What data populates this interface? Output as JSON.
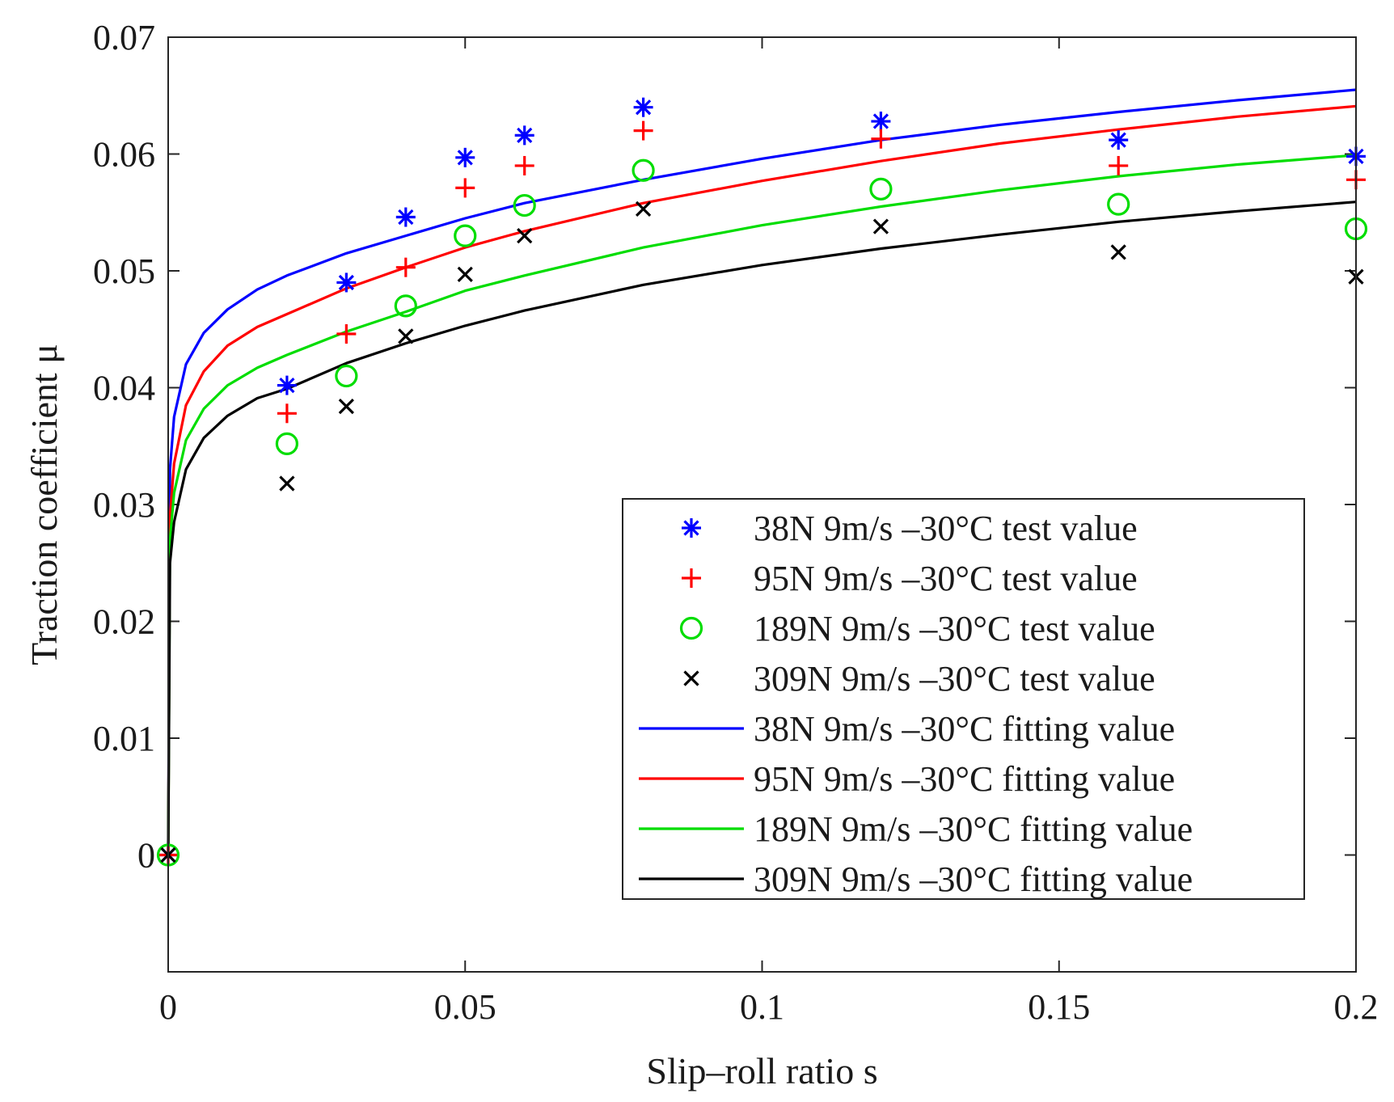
{
  "chart_data": {
    "type": "scatter",
    "xlabel": "Slip–roll ratio   s",
    "ylabel": "Traction coefficient   μ",
    "xlim": [
      0,
      0.2
    ],
    "ylim": [
      -0.01,
      0.07
    ],
    "xticks": [
      0,
      0.05,
      0.1,
      0.15,
      0.2
    ],
    "xtick_labels": [
      "0",
      "0.05",
      "0.1",
      "0.15",
      "0.2"
    ],
    "yticks": [
      0,
      0.01,
      0.02,
      0.03,
      0.04,
      0.05,
      0.06,
      0.07
    ],
    "ytick_labels": [
      "0",
      "0.01",
      "0.02",
      "0.03",
      "0.04",
      "0.05",
      "0.06",
      "0.07"
    ],
    "legend_position": "bottom-right",
    "x": [
      0,
      0.02,
      0.03,
      0.04,
      0.05,
      0.06,
      0.08,
      0.12,
      0.16,
      0.2
    ],
    "series": [
      {
        "name": "38N 9m/s –30°C test value",
        "kind": "markers",
        "marker": "asterisk",
        "color": "#0000ff",
        "values": [
          0,
          0.0402,
          0.049,
          0.0546,
          0.0597,
          0.0616,
          0.064,
          0.0628,
          0.0612,
          0.0598
        ]
      },
      {
        "name": "95N 9m/s –30°C test value",
        "kind": "markers",
        "marker": "plus",
        "color": "#ff0000",
        "values": [
          0,
          0.0378,
          0.0446,
          0.0503,
          0.0571,
          0.059,
          0.062,
          0.0613,
          0.059,
          0.0578
        ]
      },
      {
        "name": "189N 9m/s –30°C test value",
        "kind": "markers",
        "marker": "circle",
        "color": "#00dd00",
        "values": [
          0,
          0.0352,
          0.041,
          0.047,
          0.053,
          0.0556,
          0.0586,
          0.057,
          0.0557,
          0.0536
        ]
      },
      {
        "name": "309N 9m/s –30°C test value",
        "kind": "markers",
        "marker": "x",
        "color": "#000000",
        "values": [
          0,
          0.0318,
          0.0384,
          0.0444,
          0.0497,
          0.053,
          0.0553,
          0.0538,
          0.0516,
          0.0495
        ]
      },
      {
        "name": "38N 9m/s –30°C fitting value",
        "kind": "line",
        "color": "#0000ff",
        "x": [
          0,
          0.0003,
          0.001,
          0.003,
          0.006,
          0.01,
          0.015,
          0.02,
          0.03,
          0.04,
          0.05,
          0.06,
          0.08,
          0.1,
          0.12,
          0.14,
          0.16,
          0.18,
          0.2
        ],
        "values": [
          0,
          0.033,
          0.0375,
          0.042,
          0.0447,
          0.0467,
          0.0484,
          0.0496,
          0.0515,
          0.053,
          0.0545,
          0.0558,
          0.0578,
          0.0596,
          0.0612,
          0.0625,
          0.0636,
          0.0646,
          0.0655
        ]
      },
      {
        "name": "95N 9m/s –30°C fitting value",
        "kind": "line",
        "color": "#ff0000",
        "x": [
          0,
          0.0003,
          0.001,
          0.003,
          0.006,
          0.01,
          0.015,
          0.02,
          0.03,
          0.04,
          0.05,
          0.06,
          0.08,
          0.1,
          0.12,
          0.14,
          0.16,
          0.18,
          0.2
        ],
        "values": [
          0,
          0.029,
          0.0335,
          0.0385,
          0.0414,
          0.0436,
          0.0452,
          0.0463,
          0.0485,
          0.0503,
          0.052,
          0.0534,
          0.0558,
          0.0577,
          0.0594,
          0.0609,
          0.0621,
          0.0632,
          0.0641
        ]
      },
      {
        "name": "189N 9m/s –30°C fitting value",
        "kind": "line",
        "color": "#00dd00",
        "x": [
          0,
          0.0003,
          0.001,
          0.003,
          0.006,
          0.01,
          0.015,
          0.02,
          0.03,
          0.04,
          0.05,
          0.06,
          0.08,
          0.1,
          0.12,
          0.14,
          0.16,
          0.18,
          0.2
        ],
        "values": [
          0,
          0.027,
          0.031,
          0.0355,
          0.0382,
          0.0402,
          0.0417,
          0.0428,
          0.0448,
          0.0465,
          0.0483,
          0.0496,
          0.052,
          0.0539,
          0.0555,
          0.0569,
          0.0581,
          0.0591,
          0.0599
        ]
      },
      {
        "name": "309N 9m/s –30°C fitting value",
        "kind": "line",
        "color": "#000000",
        "x": [
          0,
          0.0003,
          0.001,
          0.003,
          0.006,
          0.01,
          0.015,
          0.02,
          0.03,
          0.04,
          0.05,
          0.06,
          0.08,
          0.1,
          0.12,
          0.14,
          0.16,
          0.18,
          0.2
        ],
        "values": [
          0,
          0.025,
          0.0285,
          0.033,
          0.0357,
          0.0376,
          0.0391,
          0.0399,
          0.0421,
          0.0438,
          0.0453,
          0.0466,
          0.0488,
          0.0505,
          0.0519,
          0.0531,
          0.0542,
          0.0551,
          0.0559
        ]
      }
    ]
  }
}
